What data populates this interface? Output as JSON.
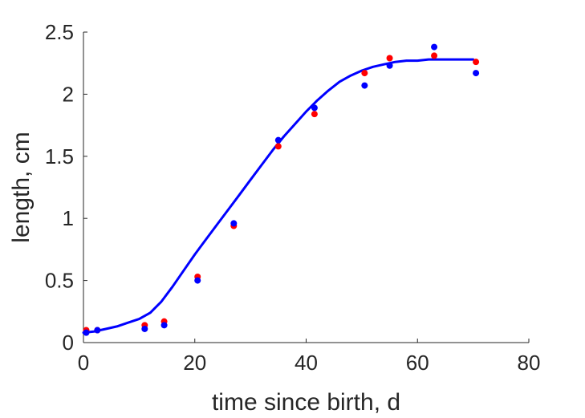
{
  "chart_data": {
    "type": "scatter",
    "title": "",
    "xlabel": "time since birth, d",
    "ylabel": "length, cm",
    "xlim": [
      0,
      80
    ],
    "ylim": [
      0,
      2.5
    ],
    "xticks": [
      0,
      20,
      40,
      60,
      80
    ],
    "yticks": [
      0,
      0.5,
      1,
      1.5,
      2,
      2.5
    ],
    "xtick_labels": [
      "0",
      "20",
      "40",
      "60",
      "80"
    ],
    "ytick_labels": [
      "0",
      "0.5",
      "1",
      "1.5",
      "2",
      "2.5"
    ],
    "grid": false,
    "legend": "none",
    "series": [
      {
        "type": "scatter",
        "color": "#ff0000",
        "x": [
          0.5,
          2.5,
          11,
          14.5,
          20.5,
          27,
          35,
          41.5,
          50.5,
          55,
          63,
          70.5
        ],
        "y": [
          0.1,
          0.1,
          0.14,
          0.17,
          0.53,
          0.94,
          1.58,
          1.84,
          2.17,
          2.29,
          2.31,
          2.26
        ]
      },
      {
        "type": "scatter",
        "color": "#0000ff",
        "x": [
          0.5,
          2.5,
          11,
          14.5,
          20.5,
          27,
          35,
          41.5,
          50.5,
          55,
          63,
          70.5
        ],
        "y": [
          0.08,
          0.1,
          0.11,
          0.14,
          0.5,
          0.96,
          1.63,
          1.89,
          2.07,
          2.23,
          2.38,
          2.17
        ]
      },
      {
        "type": "line",
        "color": "#0000ff",
        "x": [
          0,
          2,
          4,
          6,
          8,
          10,
          12,
          14,
          16,
          18,
          20,
          22,
          24,
          26,
          28,
          30,
          32,
          34,
          36,
          38,
          40,
          42,
          44,
          46,
          48,
          50,
          52,
          54,
          56,
          58,
          60,
          62,
          64,
          66,
          68,
          70
        ],
        "y": [
          0.08,
          0.09,
          0.11,
          0.13,
          0.16,
          0.19,
          0.24,
          0.33,
          0.45,
          0.58,
          0.71,
          0.83,
          0.95,
          1.07,
          1.19,
          1.31,
          1.43,
          1.55,
          1.66,
          1.76,
          1.86,
          1.95,
          2.03,
          2.1,
          2.15,
          2.19,
          2.22,
          2.24,
          2.26,
          2.27,
          2.27,
          2.28,
          2.28,
          2.28,
          2.28,
          2.28
        ]
      }
    ]
  }
}
